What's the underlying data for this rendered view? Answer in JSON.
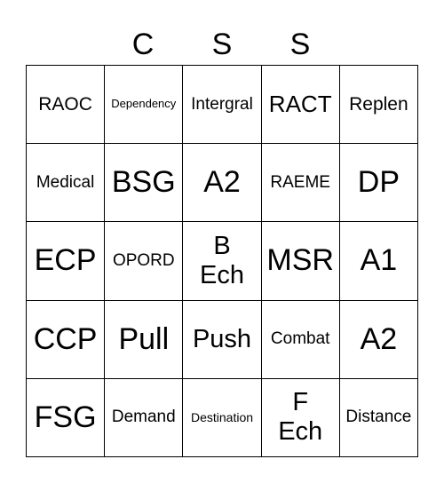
{
  "header": [
    "C",
    "S",
    "S"
  ],
  "board": {
    "rows": [
      [
        "RAOC",
        "Dependency",
        "Intergral",
        "RACT",
        "Replen"
      ],
      [
        "Medical",
        "BSG",
        "A2",
        "RAEME",
        "DP"
      ],
      [
        "ECP",
        "OPORD",
        "B\nEch",
        "MSR",
        "A1"
      ],
      [
        "CCP",
        "Pull",
        "Push",
        "Combat",
        "A2"
      ],
      [
        "FSG",
        "Demand",
        "Destination",
        "F\nEch",
        "Distance"
      ]
    ]
  }
}
